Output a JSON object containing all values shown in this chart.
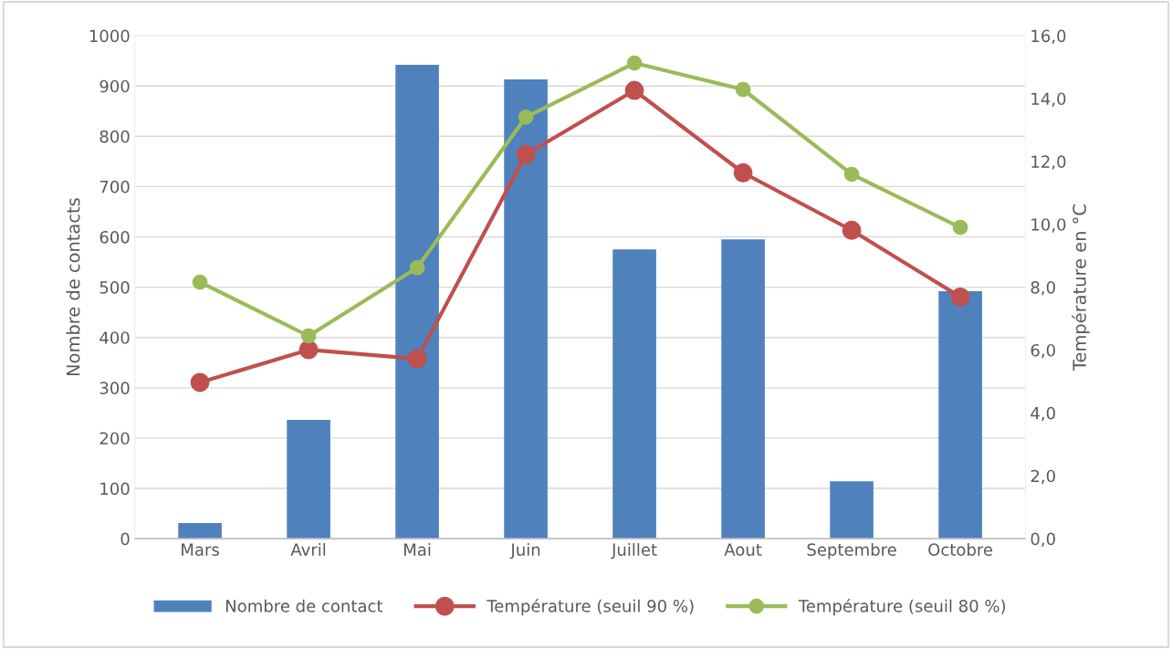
{
  "chart_data": {
    "type": "bar",
    "ylabel": "Nombre de contacts",
    "y2label": "Température en °C",
    "categories": [
      "Mars",
      "Avril",
      "Mai",
      "Juin",
      "Juillet",
      "Aout",
      "Septembre",
      "Octobre"
    ],
    "series": [
      {
        "name": "Nombre de contact",
        "color": "#4f81bd",
        "values": [
          31,
          236,
          942,
          913,
          575,
          595,
          114,
          492
        ]
      },
      {
        "name": "Température (seuil 90 %)",
        "type": "line",
        "axis": "y2",
        "color": "#c0504d",
        "marker": "circle",
        "values": [
          4.97,
          6.01,
          5.72,
          12.22,
          14.26,
          11.64,
          9.81,
          7.69
        ]
      },
      {
        "name": "Température (seuil 80 %)",
        "type": "line",
        "axis": "y2",
        "color": "#9bbb59",
        "marker": "circle",
        "values": [
          8.16,
          6.45,
          8.62,
          13.41,
          15.13,
          14.29,
          11.59,
          9.9
        ]
      }
    ],
    "ylim": [
      0,
      1000
    ],
    "yticks": [
      0,
      100,
      200,
      300,
      400,
      500,
      600,
      700,
      800,
      900,
      1000
    ],
    "y2lim": [
      0,
      16
    ],
    "y2ticks": [
      {
        "value": 0,
        "label": "0,0"
      },
      {
        "value": 2,
        "label": "2,0"
      },
      {
        "value": 4,
        "label": "4,0"
      },
      {
        "value": 6,
        "label": "6,0"
      },
      {
        "value": 8,
        "label": "8,0"
      },
      {
        "value": 10,
        "label": "10,0"
      },
      {
        "value": 12,
        "label": "12,0"
      },
      {
        "value": 14,
        "label": "14,0"
      },
      {
        "value": 16,
        "label": "16,0"
      }
    ],
    "grid": "y",
    "legend": "bottom",
    "line_style": "solid"
  }
}
